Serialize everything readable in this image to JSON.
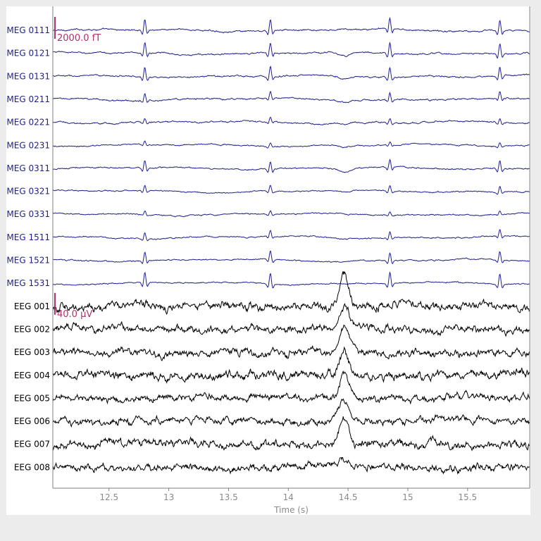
{
  "chart_data": {
    "type": "line",
    "xlabel": "Time (s)",
    "xlim": [
      12.03,
      16.02
    ],
    "x_ticks": [
      12.5,
      13,
      13.5,
      14,
      14.5,
      15,
      15.5
    ],
    "x_tick_labels": [
      "12.5",
      "13",
      "13.5",
      "14",
      "14.5",
      "15",
      "15.5"
    ],
    "spike_times": [
      12.8,
      13.85,
      14.85,
      15.77
    ],
    "artifact_time": 14.47,
    "channels": [
      {
        "name": "MEG 0111",
        "type": "meg",
        "spike_amp": 1.0,
        "noise": 0.25,
        "artifact": 0.15
      },
      {
        "name": "MEG 0121",
        "type": "meg",
        "spike_amp": 0.95,
        "noise": 0.25,
        "artifact": -0.55
      },
      {
        "name": "MEG 0131",
        "type": "meg",
        "spike_amp": 0.9,
        "noise": 0.25,
        "artifact": -0.45
      },
      {
        "name": "MEG 0211",
        "type": "meg",
        "spike_amp": 0.6,
        "noise": 0.25,
        "artifact": -0.35
      },
      {
        "name": "MEG 0221",
        "type": "meg",
        "spike_amp": 0.4,
        "noise": 0.25,
        "artifact": -0.25
      },
      {
        "name": "MEG 0231",
        "type": "meg",
        "spike_amp": 0.3,
        "noise": 0.2,
        "artifact": -0.2
      },
      {
        "name": "MEG 0311",
        "type": "meg",
        "spike_amp": 0.75,
        "noise": 0.22,
        "artifact": -0.55
      },
      {
        "name": "MEG 0321",
        "type": "meg",
        "spike_amp": 0.5,
        "noise": 0.2,
        "artifact": -0.15
      },
      {
        "name": "MEG 0331",
        "type": "meg",
        "spike_amp": 0.3,
        "noise": 0.2,
        "artifact": -0.1
      },
      {
        "name": "MEG 1511",
        "type": "meg",
        "spike_amp": 0.55,
        "noise": 0.2,
        "artifact": -0.1
      },
      {
        "name": "MEG 1521",
        "type": "meg",
        "spike_amp": 0.75,
        "noise": 0.2,
        "artifact": -0.1
      },
      {
        "name": "MEG 1531",
        "type": "meg",
        "spike_amp": 1.0,
        "noise": 0.2,
        "artifact": -0.1
      },
      {
        "name": "EEG 001",
        "type": "eeg",
        "spike_amp": 0.0,
        "noise": 0.55,
        "artifact": 1.6
      },
      {
        "name": "EEG 002",
        "type": "eeg",
        "spike_amp": 0.0,
        "noise": 0.5,
        "artifact": 1.3
      },
      {
        "name": "EEG 003",
        "type": "eeg",
        "spike_amp": 0.0,
        "noise": 0.5,
        "artifact": 1.3
      },
      {
        "name": "EEG 004",
        "type": "eeg",
        "spike_amp": 0.0,
        "noise": 0.55,
        "artifact": 1.4
      },
      {
        "name": "EEG 005",
        "type": "eeg",
        "spike_amp": 0.0,
        "noise": 0.45,
        "artifact": 1.4
      },
      {
        "name": "EEG 006",
        "type": "eeg",
        "spike_amp": 0.0,
        "noise": 0.45,
        "artifact": 1.3
      },
      {
        "name": "EEG 007",
        "type": "eeg",
        "spike_amp": 0.0,
        "noise": 0.55,
        "artifact": 1.4
      },
      {
        "name": "EEG 008",
        "type": "eeg",
        "spike_amp": 0.0,
        "noise": 0.5,
        "artifact": 0.45
      }
    ],
    "scalebars": [
      {
        "label": "2000.0 fT",
        "channel_index": 0
      },
      {
        "label": "40.0 µV",
        "channel_index": 12
      }
    ]
  },
  "colors": {
    "meg": "#1f1f8a",
    "eeg": "#000000",
    "axis": "#7f7f7f",
    "scalebar": "#b0306a"
  }
}
